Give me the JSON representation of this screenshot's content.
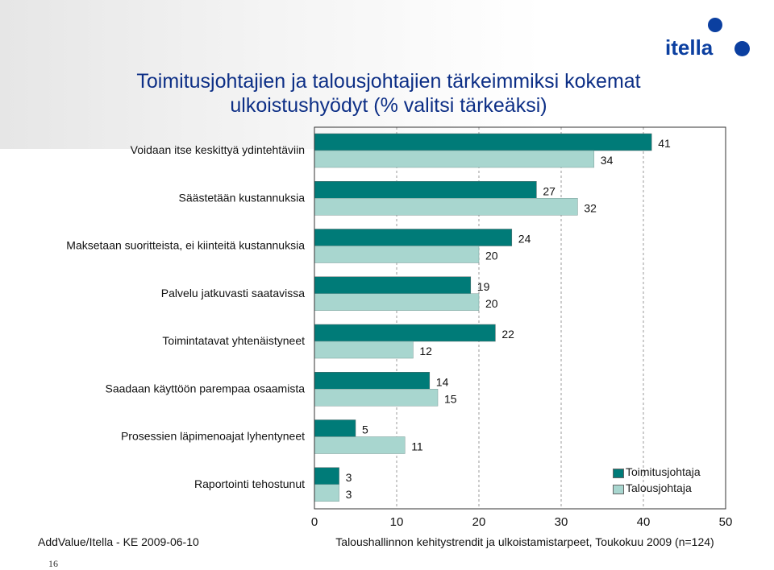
{
  "logo": {
    "text": "itella"
  },
  "title": {
    "line1": "Toimitusjohtajien ja talousjohtajien tärkeimmiksi kokemat",
    "line2": "ulkoistushyödyt (% valitsi tärkeäksi)"
  },
  "footer": {
    "left": "AddValue/Itella - KE 2009-06-10",
    "right": "Taloushallinnon kehitystrendit ja ulkoistamistarpeet, Toukokuu 2009 (n=124)",
    "page_number": "16"
  },
  "colors": {
    "series1": "#007b78",
    "series2": "#a8d6cf",
    "title": "#0d2f86",
    "logo": "#0b3fa0"
  },
  "chart_data": {
    "type": "bar",
    "orientation": "horizontal",
    "categories": [
      "Voidaan itse keskittyä ydintehtäviin",
      "Säästetään kustannuksia",
      "Maksetaan suoritteista, ei kiinteitä kustannuksia",
      "Palvelu jatkuvasti saatavissa",
      "Toimintatavat yhtenäistyneet",
      "Saadaan käyttöön parempaa osaamista",
      "Prosessien läpimenoajat lyhentyneet",
      "Raportointi tehostunut"
    ],
    "series": [
      {
        "name": "Toimitusjohtaja",
        "values": [
          41,
          27,
          24,
          19,
          22,
          14,
          5,
          3
        ]
      },
      {
        "name": "Talousjohtaja",
        "values": [
          34,
          32,
          20,
          20,
          12,
          15,
          11,
          3
        ]
      }
    ],
    "xlim": [
      0,
      50
    ],
    "x_ticks": [
      "0",
      "10",
      "20",
      "30",
      "40",
      "50"
    ],
    "grid": "vertical dashed",
    "legend_position": "bottom-right"
  }
}
